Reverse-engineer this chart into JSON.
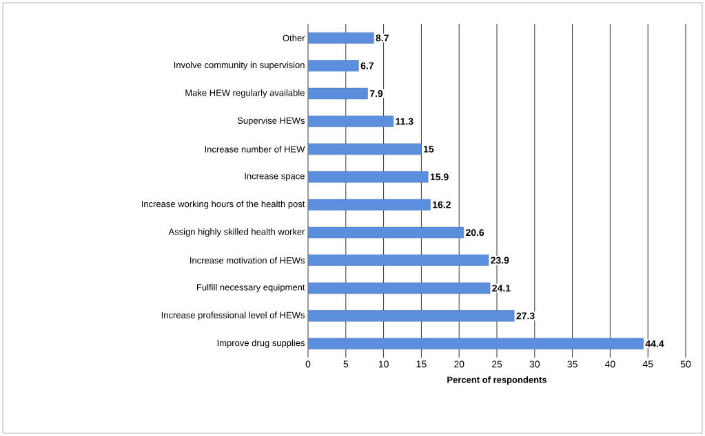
{
  "chart_data": {
    "type": "bar",
    "orientation": "horizontal",
    "xlabel": "Percent of respondents",
    "categories": [
      "Other",
      "Involve community in supervision",
      "Make HEW regularly available",
      "Supervise HEWs",
      "Increase number of HEW",
      "Increase space",
      "Increase working hours of the health post",
      "Assign highly skilled health worker",
      "Increase motivation of HEWs",
      "Fulfill necessary equipment",
      "Increase professional level of HEWs",
      "Improve drug supplies"
    ],
    "values": [
      8.7,
      6.7,
      7.9,
      11.3,
      15,
      15.9,
      16.2,
      20.6,
      23.9,
      24.1,
      27.3,
      44.4
    ],
    "color": "#5b8fde",
    "xlim": [
      0,
      50
    ],
    "xticks": [
      0,
      5,
      10,
      15,
      20,
      25,
      30,
      35,
      40,
      45,
      50
    ],
    "grid": "x",
    "data_labels": true
  }
}
